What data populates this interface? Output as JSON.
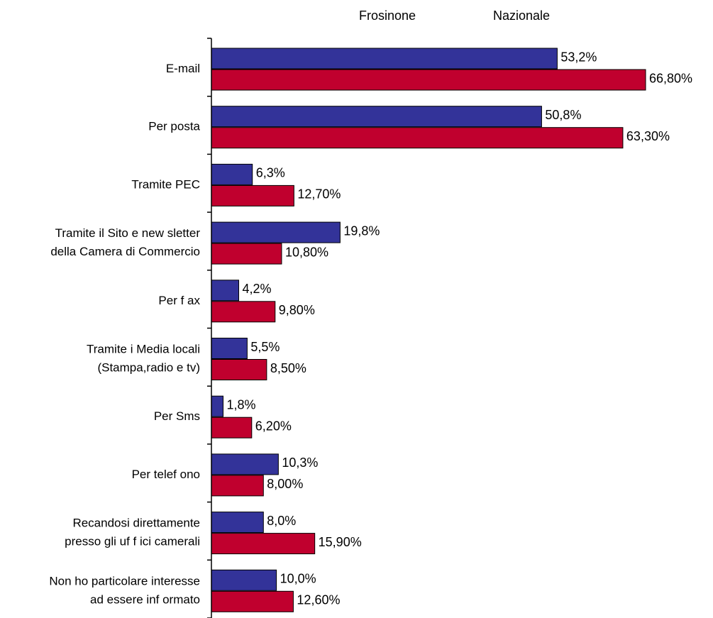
{
  "chart_data": {
    "type": "bar",
    "orientation": "horizontal",
    "legend_position": "top",
    "categories": [
      [
        "E-mail"
      ],
      [
        "Per posta"
      ],
      [
        "Tramite PEC"
      ],
      [
        "Tramite il Sito e new sletter",
        "della Camera di Commercio"
      ],
      [
        "Per f ax"
      ],
      [
        "Tramite i Media locali",
        "(Stampa,radio e tv)"
      ],
      [
        "Per Sms"
      ],
      [
        "Per telef ono"
      ],
      [
        "Recandosi direttamente",
        "presso gli uf f ici camerali"
      ],
      [
        "Non ho particolare interesse",
        "ad essere inf ormato"
      ]
    ],
    "series": [
      {
        "name": "Frosinone",
        "color": "#333399",
        "values": [
          53.2,
          50.8,
          6.3,
          19.8,
          4.2,
          5.5,
          1.8,
          10.3,
          8.0,
          10.0
        ],
        "labels": [
          "53,2%",
          "50,8%",
          "6,3%",
          "19,8%",
          "4,2%",
          "5,5%",
          "1,8%",
          "10,3%",
          "8,0%",
          "10,0%"
        ]
      },
      {
        "name": "Nazionale",
        "color": "#c0002e",
        "values": [
          66.8,
          63.3,
          12.7,
          10.8,
          9.8,
          8.5,
          6.2,
          8.0,
          15.9,
          12.6
        ],
        "labels": [
          "66,80%",
          "63,30%",
          "12,70%",
          "10,80%",
          "9,80%",
          "8,50%",
          "6,20%",
          "8,00%",
          "15,90%",
          "12,60%"
        ]
      }
    ],
    "xlim": [
      0,
      66.8
    ],
    "grid": false
  }
}
